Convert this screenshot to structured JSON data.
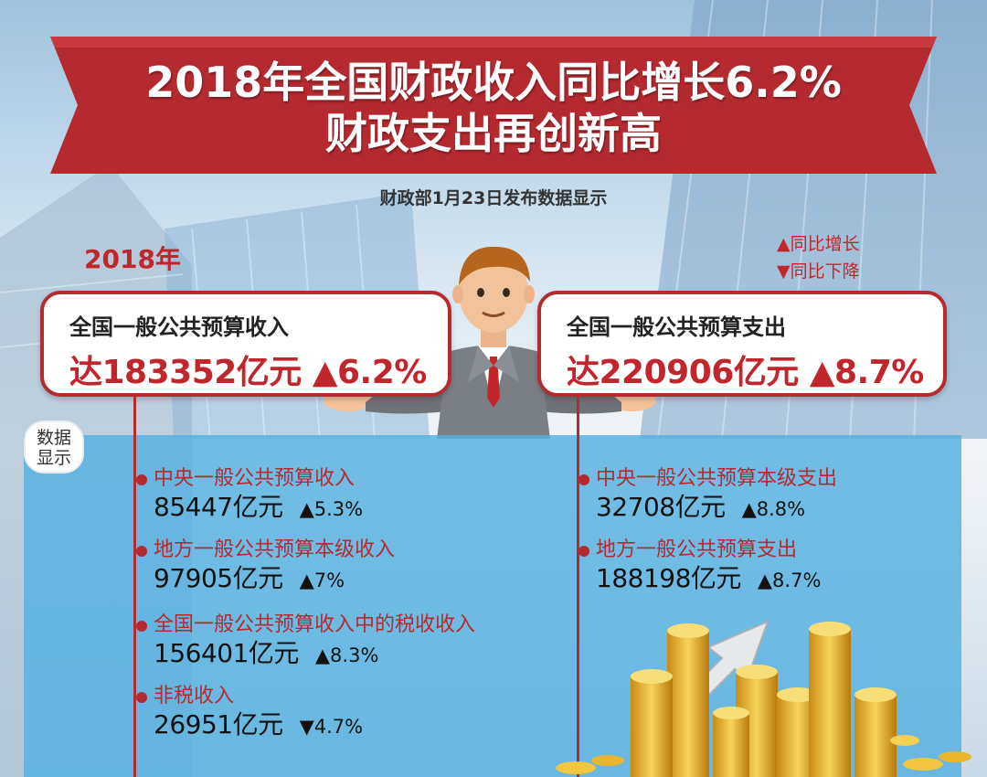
{
  "header": {
    "title_line1": "2018年全国财政收入同比增长6.2%",
    "title_line2": "财政支出再创新高",
    "source": "财政部1月23日发布数据显示"
  },
  "year_label": "2018年",
  "legend": {
    "up": "▲同比增长",
    "down": "▼同比下降"
  },
  "highlights": {
    "revenue": {
      "title": "全国一般公共预算收入",
      "value": "达183352亿元 ▲6.2%"
    },
    "expenditure": {
      "title": "全国一般公共预算支出",
      "value": "达220906亿元 ▲8.7%"
    }
  },
  "tag_label": [
    "数据",
    "显示"
  ],
  "revenue_items": [
    {
      "label": "中央一般公共预算收入",
      "value": "85447亿元",
      "change": "▲5.3%"
    },
    {
      "label": "地方一般公共预算本级收入",
      "value": "97905亿元",
      "change": "▲7%"
    },
    {
      "label": "全国一般公共预算收入中的税收收入",
      "value": "156401亿元",
      "change": "▲8.3%"
    },
    {
      "label": "非税收入",
      "value": "26951亿元",
      "change": "▼4.7%"
    }
  ],
  "expenditure_items": [
    {
      "label": "中央一般公共预算本级支出",
      "value": "32708亿元",
      "change": "▲8.8%"
    },
    {
      "label": "地方一般公共预算支出",
      "value": "188198亿元",
      "change": "▲8.7%"
    }
  ],
  "colors": {
    "accent_red": "#c0262c",
    "banner_red": "#b52a2f",
    "panel_blue": "#54b0e0",
    "coin_gold": "#e8b423"
  }
}
